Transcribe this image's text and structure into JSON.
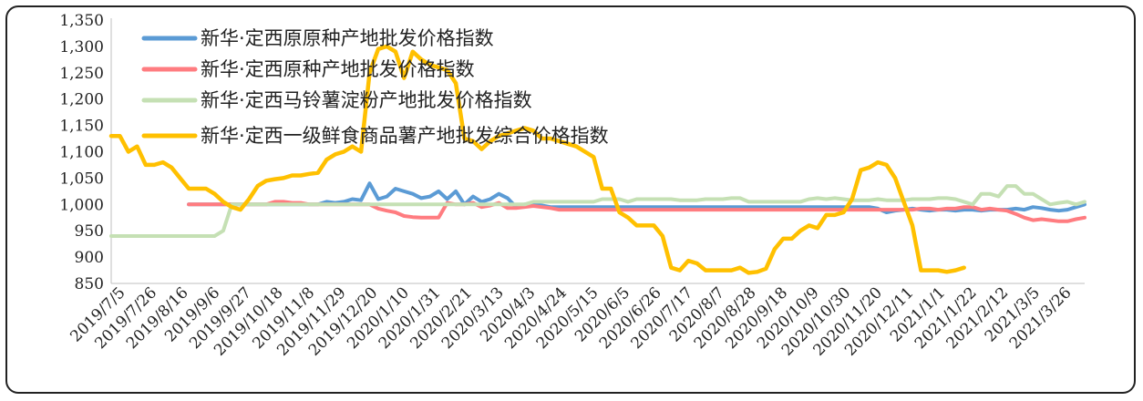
{
  "chart_data": {
    "type": "line",
    "title": "",
    "xlabel": "",
    "ylabel": "",
    "ylim": [
      850,
      1350
    ],
    "yticks": [
      850,
      900,
      950,
      1000,
      1050,
      1100,
      1150,
      1200,
      1250,
      1300,
      1350
    ],
    "ytick_labels": [
      "850",
      "900",
      "950",
      "1,000",
      "1,050",
      "1,100",
      "1,150",
      "1,200",
      "1,250",
      "1,300",
      "1,350"
    ],
    "x_tick_labels": [
      "2019/7/5",
      "2019/7/26",
      "2019/8/16",
      "2019/9/6",
      "2019/9/27",
      "2019/10/18",
      "2019/11/8",
      "2019/11/29",
      "2019/12/20",
      "2020/1/10",
      "2020/1/31",
      "2020/2/21",
      "2020/3/13",
      "2020/4/3",
      "2020/4/24",
      "2020/5/15",
      "2020/6/5",
      "2020/6/26",
      "2020/7/17",
      "2020/8/7",
      "2020/8/28",
      "2020/9/18",
      "2020/10/9",
      "2020/10/30",
      "2020/11/20",
      "2020/12/11",
      "2021/1/1",
      "2021/1/22",
      "2021/2/12",
      "2021/3/5",
      "2021/3/26"
    ],
    "legend_position": "top-left",
    "grid": false,
    "series": [
      {
        "name": "新华·定西原原种产地批发价格指数",
        "color": "#5B9BD5",
        "values": [
          null,
          null,
          null,
          null,
          null,
          null,
          null,
          null,
          null,
          1000,
          1000,
          1000,
          1000,
          1000,
          1000,
          1000,
          1000,
          1000,
          1000,
          1000,
          1000,
          1000,
          1000,
          1000,
          1000,
          1005,
          1003,
          1005,
          1010,
          1008,
          1040,
          1010,
          1015,
          1030,
          1025,
          1020,
          1012,
          1015,
          1025,
          1010,
          1025,
          1000,
          1015,
          1005,
          1010,
          1020,
          1012,
          995,
          1000,
          1003,
          998,
          995,
          995,
          995,
          995,
          995,
          995,
          995,
          995,
          995,
          995,
          995,
          995,
          995,
          995,
          995,
          995,
          995,
          995,
          995,
          995,
          995,
          995,
          995,
          995,
          995,
          995,
          995,
          995,
          995,
          995,
          995,
          995,
          995,
          995,
          995,
          995,
          995,
          995,
          992,
          985,
          988,
          990,
          992,
          990,
          988,
          990,
          990,
          988,
          990,
          990,
          988,
          990,
          990,
          990,
          992,
          990,
          995,
          993,
          990,
          988,
          990,
          995,
          1000
        ]
      },
      {
        "name": "新华·定西原种产地批发价格指数",
        "color": "#FF7C80",
        "values": [
          null,
          null,
          null,
          null,
          null,
          null,
          null,
          null,
          null,
          1000,
          1000,
          1000,
          1000,
          1000,
          1000,
          1000,
          1000,
          1000,
          1000,
          1005,
          1005,
          1003,
          1003,
          1000,
          1000,
          1000,
          1000,
          1000,
          1000,
          1000,
          1000,
          992,
          988,
          985,
          978,
          976,
          975,
          975,
          975,
          1003,
          1000,
          1000,
          1003,
          995,
          998,
          1003,
          993,
          993,
          995,
          997,
          995,
          993,
          990,
          990,
          990,
          990,
          990,
          990,
          990,
          990,
          990,
          990,
          990,
          990,
          990,
          990,
          990,
          990,
          990,
          990,
          990,
          990,
          990,
          990,
          990,
          990,
          990,
          990,
          990,
          990,
          990,
          990,
          990,
          990,
          990,
          990,
          990,
          990,
          990,
          990,
          990,
          990,
          990,
          990,
          992,
          992,
          990,
          992,
          992,
          995,
          995,
          990,
          992,
          990,
          988,
          982,
          975,
          970,
          972,
          970,
          968,
          968,
          972,
          975
        ]
      },
      {
        "name": "新华·定西马铃薯淀粉产地批发价格指数",
        "color": "#C5E0B4",
        "values": [
          940,
          940,
          940,
          940,
          940,
          940,
          940,
          940,
          940,
          940,
          940,
          940,
          940,
          950,
          1000,
          1000,
          1000,
          1000,
          1000,
          1000,
          1000,
          1000,
          1000,
          1000,
          1000,
          1000,
          1000,
          1000,
          1000,
          1000,
          1000,
          1000,
          1000,
          1000,
          1000,
          1000,
          1000,
          1000,
          1000,
          1000,
          1000,
          1000,
          1000,
          1000,
          1000,
          1000,
          1000,
          1000,
          1000,
          1005,
          1005,
          1005,
          1005,
          1005,
          1005,
          1005,
          1005,
          1010,
          1010,
          1010,
          1005,
          1010,
          1010,
          1010,
          1010,
          1010,
          1008,
          1008,
          1008,
          1010,
          1010,
          1010,
          1012,
          1012,
          1005,
          1005,
          1005,
          1005,
          1005,
          1005,
          1005,
          1010,
          1012,
          1010,
          1012,
          1010,
          1008,
          1008,
          1008,
          1010,
          1008,
          1008,
          1008,
          1010,
          1010,
          1010,
          1012,
          1012,
          1010,
          1005,
          1000,
          1020,
          1020,
          1015,
          1035,
          1035,
          1020,
          1020,
          1010,
          1000,
          1003,
          1005,
          1000,
          1005
        ]
      },
      {
        "name": "新华·定西一级鲜食商品薯产地批发综合价格指数",
        "color": "#FFC000",
        "values": [
          1130,
          1130,
          1100,
          1110,
          1075,
          1075,
          1080,
          1070,
          1050,
          1030,
          1030,
          1030,
          1020,
          1005,
          995,
          990,
          1010,
          1035,
          1045,
          1048,
          1050,
          1055,
          1055,
          1058,
          1060,
          1085,
          1095,
          1100,
          1110,
          1100,
          1250,
          1295,
          1300,
          1290,
          1240,
          1290,
          1275,
          1265,
          1260,
          1255,
          1230,
          1125,
          1120,
          1105,
          1120,
          1130,
          1135,
          1140,
          1145,
          1140,
          1125,
          1125,
          1120,
          1115,
          1110,
          1100,
          1090,
          1030,
          1030,
          985,
          975,
          960,
          960,
          960,
          940,
          880,
          875,
          893,
          888,
          875,
          875,
          875,
          875,
          880,
          870,
          872,
          878,
          915,
          935,
          935,
          950,
          960,
          955,
          980,
          980,
          985,
          1010,
          1065,
          1070,
          1080,
          1075,
          1050,
          1005,
          960,
          875,
          875,
          875,
          872,
          875,
          880
        ]
      }
    ]
  }
}
